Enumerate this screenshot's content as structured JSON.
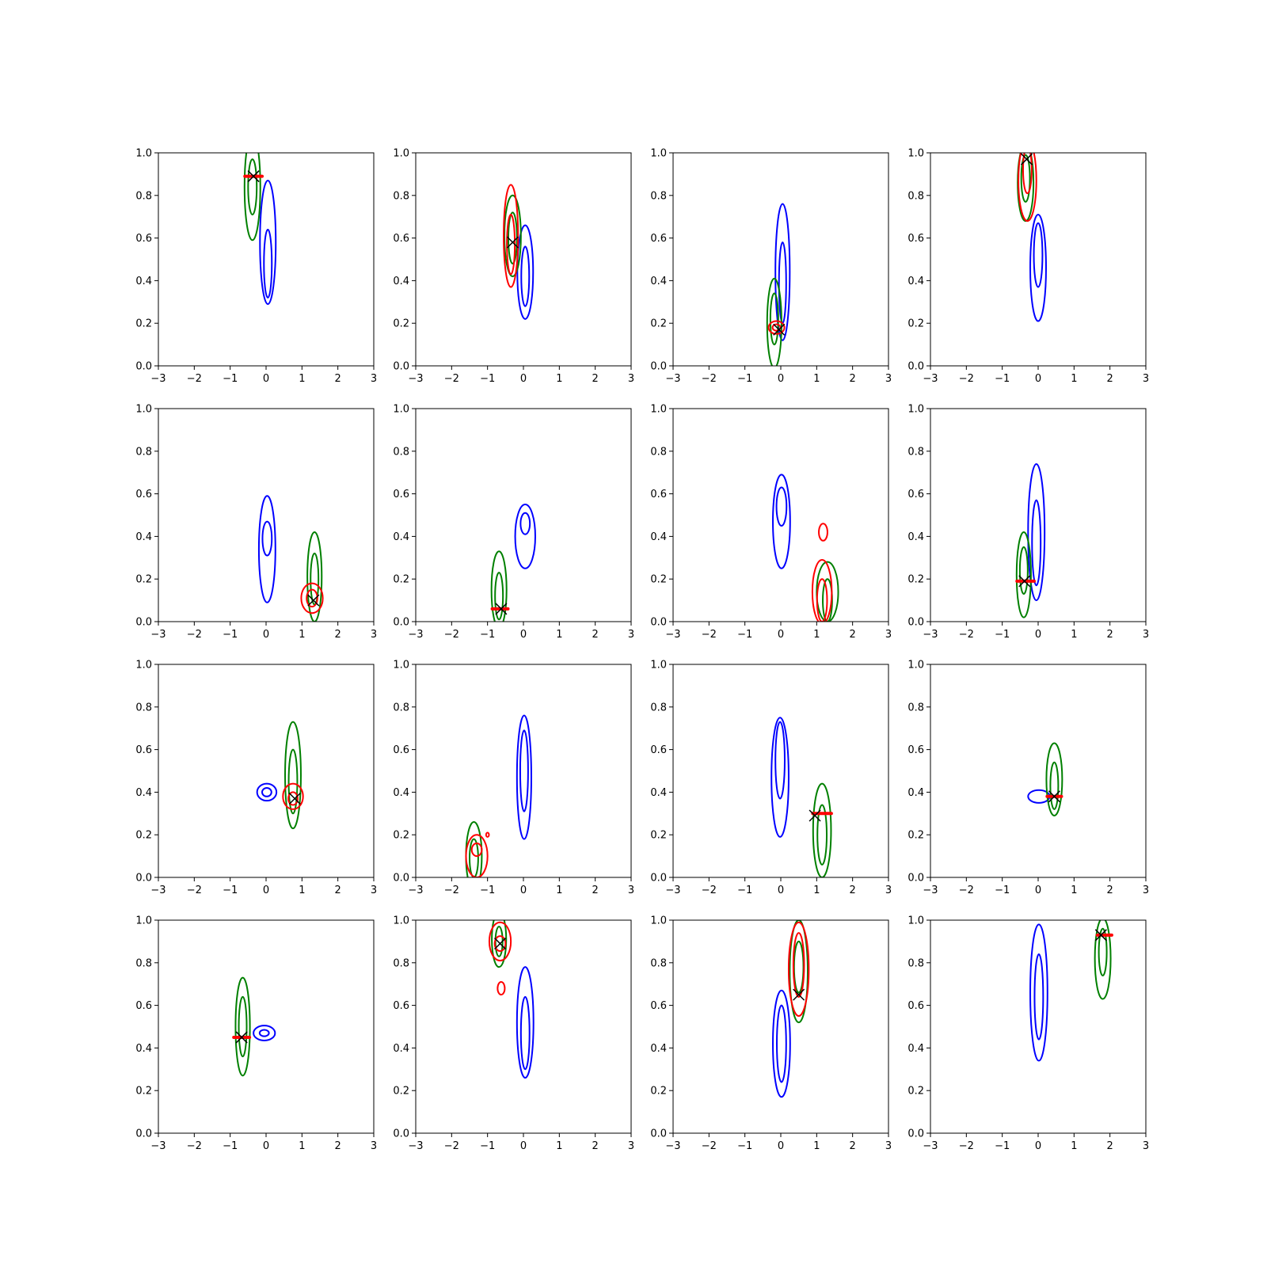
{
  "figure": {
    "description_free": true,
    "colors": {
      "blue": "#0000ff",
      "green": "#008000",
      "red": "#ff0000",
      "marker": "#000000",
      "axes": "#000000",
      "background": "#ffffff"
    }
  },
  "chart_data": [
    {
      "type": "contour",
      "xlim": [
        -3,
        3
      ],
      "ylim": [
        0,
        1
      ],
      "xticks": [
        "−3",
        "−2",
        "−1",
        "0",
        "1",
        "2",
        "3"
      ],
      "yticks": [
        "0.0",
        "0.2",
        "0.4",
        "0.6",
        "0.8",
        "1.0"
      ],
      "marker": [
        -0.35,
        0.89
      ],
      "contours": [
        {
          "color": "blue",
          "cx": 0.05,
          "cy": 0.58,
          "rx": 0.22,
          "ry": 0.29,
          "irx": 0.11,
          "iry": 0.16,
          "icy": 0.48
        },
        {
          "color": "green",
          "cx": -0.38,
          "cy": 0.84,
          "rx": 0.22,
          "ry": 0.25,
          "irx": 0.12,
          "iry": 0.13,
          "icy": 0.84
        },
        {
          "color": "red",
          "kind": "flat",
          "cx": -0.35,
          "cy": 0.89,
          "rx": 0.24,
          "ry": 0.012
        }
      ]
    },
    {
      "type": "contour",
      "xlim": [
        -3,
        3
      ],
      "ylim": [
        0,
        1
      ],
      "xticks": [
        "−3",
        "−2",
        "−1",
        "0",
        "1",
        "2",
        "3"
      ],
      "yticks": [
        "0.0",
        "0.2",
        "0.4",
        "0.6",
        "0.8",
        "1.0"
      ],
      "marker": [
        -0.3,
        0.58
      ],
      "contours": [
        {
          "color": "blue",
          "cx": 0.05,
          "cy": 0.44,
          "rx": 0.22,
          "ry": 0.22,
          "irx": 0.11,
          "iry": 0.14,
          "icy": 0.42
        },
        {
          "color": "green",
          "cx": -0.3,
          "cy": 0.61,
          "rx": 0.23,
          "ry": 0.19,
          "irx": 0.12,
          "iry": 0.12,
          "icy": 0.6
        },
        {
          "color": "red",
          "cx": -0.35,
          "cy": 0.61,
          "rx": 0.2,
          "ry": 0.24,
          "irx": 0.11,
          "iry": 0.14,
          "icy": 0.57
        }
      ]
    },
    {
      "type": "contour",
      "xlim": [
        -3,
        3
      ],
      "ylim": [
        0,
        1
      ],
      "xticks": [
        "−3",
        "−2",
        "−1",
        "0",
        "1",
        "2",
        "3"
      ],
      "yticks": [
        "0.0",
        "0.2",
        "0.4",
        "0.6",
        "0.8",
        "1.0"
      ],
      "marker": [
        -0.05,
        0.17
      ],
      "contours": [
        {
          "color": "blue",
          "cx": 0.05,
          "cy": 0.44,
          "rx": 0.2,
          "ry": 0.32,
          "irx": 0.1,
          "iry": 0.19,
          "icy": 0.39
        },
        {
          "color": "green",
          "cx": -0.18,
          "cy": 0.2,
          "rx": 0.2,
          "ry": 0.21,
          "irx": 0.11,
          "iry": 0.12,
          "icy": 0.22
        },
        {
          "color": "red",
          "cx": -0.12,
          "cy": 0.18,
          "rx": 0.22,
          "ry": 0.03,
          "irx": 0.11,
          "iry": 0.015,
          "icy": 0.18
        }
      ]
    },
    {
      "type": "contour",
      "xlim": [
        -3,
        3
      ],
      "ylim": [
        0,
        1
      ],
      "xticks": [
        "−3",
        "−2",
        "−1",
        "0",
        "1",
        "2",
        "3"
      ],
      "yticks": [
        "0.0",
        "0.2",
        "0.4",
        "0.6",
        "0.8",
        "1.0"
      ],
      "marker": [
        -0.32,
        0.97
      ],
      "contours": [
        {
          "color": "blue",
          "cx": 0.0,
          "cy": 0.46,
          "rx": 0.22,
          "ry": 0.25,
          "irx": 0.12,
          "iry": 0.15,
          "icy": 0.52
        },
        {
          "color": "green",
          "cx": -0.35,
          "cy": 0.86,
          "rx": 0.22,
          "ry": 0.18,
          "irx": 0.12,
          "iry": 0.11,
          "icy": 0.88
        },
        {
          "color": "red",
          "cx": -0.3,
          "cy": 0.87,
          "rx": 0.25,
          "ry": 0.19,
          "irx": 0.12,
          "iry": 0.11,
          "icy": 0.92
        }
      ]
    },
    {
      "type": "contour",
      "xlim": [
        -3,
        3
      ],
      "ylim": [
        0,
        1
      ],
      "xticks": [
        "−3",
        "−2",
        "−1",
        "0",
        "1",
        "2",
        "3"
      ],
      "yticks": [
        "0.0",
        "0.2",
        "0.4",
        "0.6",
        "0.8",
        "1.0"
      ],
      "marker": [
        1.32,
        0.1
      ],
      "contours": [
        {
          "color": "blue",
          "cx": 0.03,
          "cy": 0.34,
          "rx": 0.23,
          "ry": 0.25,
          "irx": 0.13,
          "iry": 0.08,
          "icy": 0.39
        },
        {
          "color": "green",
          "cx": 1.35,
          "cy": 0.21,
          "rx": 0.2,
          "ry": 0.21,
          "irx": 0.11,
          "iry": 0.12,
          "icy": 0.2
        },
        {
          "color": "red",
          "cx": 1.28,
          "cy": 0.11,
          "rx": 0.3,
          "ry": 0.07,
          "irx": 0.15,
          "iry": 0.04,
          "icy": 0.11
        }
      ]
    },
    {
      "type": "contour",
      "xlim": [
        -3,
        3
      ],
      "ylim": [
        0,
        1
      ],
      "xticks": [
        "−3",
        "−2",
        "−1",
        "0",
        "1",
        "2",
        "3"
      ],
      "yticks": [
        "0.0",
        "0.2",
        "0.4",
        "0.6",
        "0.8",
        "1.0"
      ],
      "marker": [
        -0.62,
        0.06
      ],
      "contours": [
        {
          "color": "blue",
          "cx": 0.05,
          "cy": 0.4,
          "rx": 0.28,
          "ry": 0.15,
          "irx": 0.13,
          "iry": 0.05,
          "icy": 0.46
        },
        {
          "color": "green",
          "cx": -0.68,
          "cy": 0.15,
          "rx": 0.21,
          "ry": 0.18,
          "irx": 0.11,
          "iry": 0.11,
          "icy": 0.12
        },
        {
          "color": "red",
          "kind": "flat",
          "cx": -0.65,
          "cy": 0.06,
          "rx": 0.22,
          "ry": 0.012
        }
      ]
    },
    {
      "type": "contour",
      "xlim": [
        -3,
        3
      ],
      "ylim": [
        0,
        1
      ],
      "xticks": [
        "−3",
        "−2",
        "−1",
        "0",
        "1",
        "2",
        "3"
      ],
      "yticks": [
        "0.0",
        "0.2",
        "0.4",
        "0.6",
        "0.8",
        "1.0"
      ],
      "marker": null,
      "contours": [
        {
          "color": "blue",
          "cx": 0.02,
          "cy": 0.47,
          "rx": 0.24,
          "ry": 0.22,
          "irx": 0.14,
          "iry": 0.09,
          "icy": 0.54
        },
        {
          "color": "green",
          "cx": 1.3,
          "cy": 0.14,
          "rx": 0.3,
          "ry": 0.14,
          "irx": 0.13,
          "iry": 0.1,
          "icy": 0.1
        },
        {
          "color": "red",
          "cx": 1.15,
          "cy": 0.14,
          "rx": 0.27,
          "ry": 0.15,
          "irx": 0.14,
          "iry": 0.1,
          "icy": 0.1
        },
        {
          "color": "red",
          "cx": 1.18,
          "cy": 0.42,
          "rx": 0.12,
          "ry": 0.04
        }
      ]
    },
    {
      "type": "contour",
      "xlim": [
        -3,
        3
      ],
      "ylim": [
        0,
        1
      ],
      "xticks": [
        "−3",
        "−2",
        "−1",
        "0",
        "1",
        "2",
        "3"
      ],
      "yticks": [
        "0.0",
        "0.2",
        "0.4",
        "0.6",
        "0.8",
        "1.0"
      ],
      "marker": [
        -0.38,
        0.19
      ],
      "contours": [
        {
          "color": "blue",
          "cx": -0.05,
          "cy": 0.42,
          "rx": 0.23,
          "ry": 0.32,
          "irx": 0.12,
          "iry": 0.2,
          "icy": 0.37
        },
        {
          "color": "green",
          "cx": -0.4,
          "cy": 0.22,
          "rx": 0.2,
          "ry": 0.2,
          "irx": 0.11,
          "iry": 0.11,
          "icy": 0.24
        },
        {
          "color": "red",
          "kind": "flat",
          "cx": -0.35,
          "cy": 0.19,
          "rx": 0.24,
          "ry": 0.012
        }
      ]
    },
    {
      "type": "contour",
      "xlim": [
        -3,
        3
      ],
      "ylim": [
        0,
        1
      ],
      "xticks": [
        "−3",
        "−2",
        "−1",
        "0",
        "1",
        "2",
        "3"
      ],
      "yticks": [
        "0.0",
        "0.2",
        "0.4",
        "0.6",
        "0.8",
        "1.0"
      ],
      "marker": [
        0.8,
        0.37
      ],
      "contours": [
        {
          "color": "blue",
          "cx": 0.02,
          "cy": 0.4,
          "rx": 0.27,
          "ry": 0.04,
          "irx": 0.13,
          "iry": 0.02,
          "icy": 0.4
        },
        {
          "color": "green",
          "cx": 0.75,
          "cy": 0.48,
          "rx": 0.22,
          "ry": 0.25,
          "irx": 0.12,
          "iry": 0.15,
          "icy": 0.45
        },
        {
          "color": "red",
          "cx": 0.75,
          "cy": 0.38,
          "rx": 0.28,
          "ry": 0.06,
          "irx": 0.13,
          "iry": 0.03,
          "icy": 0.37
        }
      ]
    },
    {
      "type": "contour",
      "xlim": [
        -3,
        3
      ],
      "ylim": [
        0,
        1
      ],
      "xticks": [
        "−3",
        "−2",
        "−1",
        "0",
        "1",
        "2",
        "3"
      ],
      "yticks": [
        "0.0",
        "0.2",
        "0.4",
        "0.6",
        "0.8",
        "1.0"
      ],
      "marker": null,
      "contours": [
        {
          "color": "blue",
          "cx": 0.02,
          "cy": 0.47,
          "rx": 0.2,
          "ry": 0.29,
          "irx": 0.11,
          "iry": 0.19,
          "icy": 0.5
        },
        {
          "color": "green",
          "cx": -1.38,
          "cy": 0.1,
          "rx": 0.22,
          "ry": 0.16,
          "irx": 0.12,
          "iry": 0.09,
          "icy": 0.09
        },
        {
          "color": "red",
          "cx": -1.3,
          "cy": 0.1,
          "rx": 0.3,
          "ry": 0.1,
          "irx": 0.14,
          "iry": 0.03,
          "icy": 0.13
        },
        {
          "color": "red",
          "cx": -1.0,
          "cy": 0.2,
          "rx": 0.04,
          "ry": 0.01
        }
      ]
    },
    {
      "type": "contour",
      "xlim": [
        -3,
        3
      ],
      "ylim": [
        0,
        1
      ],
      "xticks": [
        "−3",
        "−2",
        "−1",
        "0",
        "1",
        "2",
        "3"
      ],
      "yticks": [
        "0.0",
        "0.2",
        "0.4",
        "0.6",
        "0.8",
        "1.0"
      ],
      "marker": [
        0.95,
        0.29
      ],
      "contours": [
        {
          "color": "blue",
          "cx": -0.02,
          "cy": 0.47,
          "rx": 0.24,
          "ry": 0.28,
          "irx": 0.13,
          "iry": 0.18,
          "icy": 0.55
        },
        {
          "color": "green",
          "cx": 1.15,
          "cy": 0.22,
          "rx": 0.25,
          "ry": 0.22,
          "irx": 0.13,
          "iry": 0.14,
          "icy": 0.2
        },
        {
          "color": "red",
          "kind": "flat",
          "cx": 1.15,
          "cy": 0.3,
          "rx": 0.26,
          "ry": 0.012
        }
      ]
    },
    {
      "type": "contour",
      "xlim": [
        -3,
        3
      ],
      "ylim": [
        0,
        1
      ],
      "xticks": [
        "−3",
        "−2",
        "−1",
        "0",
        "1",
        "2",
        "3"
      ],
      "yticks": [
        "0.0",
        "0.2",
        "0.4",
        "0.6",
        "0.8",
        "1.0"
      ],
      "marker": [
        0.45,
        0.38
      ],
      "contours": [
        {
          "color": "blue",
          "cx": 0.02,
          "cy": 0.38,
          "rx": 0.3,
          "ry": 0.03
        },
        {
          "color": "green",
          "cx": 0.45,
          "cy": 0.46,
          "rx": 0.22,
          "ry": 0.17,
          "irx": 0.11,
          "iry": 0.11,
          "icy": 0.43
        },
        {
          "color": "red",
          "kind": "flat",
          "cx": 0.45,
          "cy": 0.38,
          "rx": 0.2,
          "ry": 0.012
        }
      ]
    },
    {
      "type": "contour",
      "xlim": [
        -3,
        3
      ],
      "ylim": [
        0,
        1
      ],
      "xticks": [
        "−3",
        "−2",
        "−1",
        "0",
        "1",
        "2",
        "3"
      ],
      "yticks": [
        "0.0",
        "0.2",
        "0.4",
        "0.6",
        "0.8",
        "1.0"
      ],
      "marker": [
        -0.68,
        0.45
      ],
      "contours": [
        {
          "color": "blue",
          "cx": -0.05,
          "cy": 0.47,
          "rx": 0.3,
          "ry": 0.035,
          "irx": 0.13,
          "iry": 0.015,
          "icy": 0.47
        },
        {
          "color": "green",
          "cx": -0.65,
          "cy": 0.5,
          "rx": 0.2,
          "ry": 0.23,
          "irx": 0.11,
          "iry": 0.14,
          "icy": 0.5
        },
        {
          "color": "red",
          "kind": "flat",
          "cx": -0.68,
          "cy": 0.45,
          "rx": 0.22,
          "ry": 0.012
        }
      ]
    },
    {
      "type": "contour",
      "xlim": [
        -3,
        3
      ],
      "ylim": [
        0,
        1
      ],
      "xticks": [
        "−3",
        "−2",
        "−1",
        "0",
        "1",
        "2",
        "3"
      ],
      "yticks": [
        "0.0",
        "0.2",
        "0.4",
        "0.6",
        "0.8",
        "1.0"
      ],
      "marker": [
        -0.65,
        0.89
      ],
      "contours": [
        {
          "color": "blue",
          "cx": 0.05,
          "cy": 0.52,
          "rx": 0.23,
          "ry": 0.26,
          "irx": 0.12,
          "iry": 0.17,
          "icy": 0.47
        },
        {
          "color": "green",
          "cx": -0.68,
          "cy": 0.91,
          "rx": 0.2,
          "ry": 0.13,
          "irx": 0.1,
          "iry": 0.07,
          "icy": 0.9
        },
        {
          "color": "red",
          "cx": -0.65,
          "cy": 0.9,
          "rx": 0.3,
          "ry": 0.09,
          "irx": 0.15,
          "iry": 0.035,
          "icy": 0.89
        },
        {
          "color": "red",
          "cx": -0.62,
          "cy": 0.68,
          "rx": 0.1,
          "ry": 0.03
        }
      ]
    },
    {
      "type": "contour",
      "xlim": [
        -3,
        3
      ],
      "ylim": [
        0,
        1
      ],
      "xticks": [
        "−3",
        "−2",
        "−1",
        "0",
        "1",
        "2",
        "3"
      ],
      "yticks": [
        "0.0",
        "0.2",
        "0.4",
        "0.6",
        "0.8",
        "1.0"
      ],
      "marker": [
        0.5,
        0.65
      ],
      "contours": [
        {
          "color": "blue",
          "cx": 0.02,
          "cy": 0.42,
          "rx": 0.24,
          "ry": 0.25,
          "irx": 0.13,
          "iry": 0.18,
          "icy": 0.42
        },
        {
          "color": "green",
          "cx": 0.5,
          "cy": 0.76,
          "rx": 0.25,
          "ry": 0.24,
          "irx": 0.13,
          "iry": 0.12,
          "icy": 0.78
        },
        {
          "color": "red",
          "cx": 0.5,
          "cy": 0.77,
          "rx": 0.28,
          "ry": 0.22,
          "irx": 0.15,
          "iry": 0.15,
          "icy": 0.79
        }
      ]
    },
    {
      "type": "contour",
      "xlim": [
        -3,
        3
      ],
      "ylim": [
        0,
        1
      ],
      "xticks": [
        "−3",
        "−2",
        "−1",
        "0",
        "1",
        "2",
        "3"
      ],
      "yticks": [
        "0.0",
        "0.2",
        "0.4",
        "0.6",
        "0.8",
        "1.0"
      ],
      "marker": [
        1.75,
        0.93
      ],
      "contours": [
        {
          "color": "blue",
          "cx": 0.02,
          "cy": 0.66,
          "rx": 0.24,
          "ry": 0.32,
          "irx": 0.12,
          "iry": 0.2,
          "icy": 0.64
        },
        {
          "color": "green",
          "cx": 1.8,
          "cy": 0.82,
          "rx": 0.22,
          "ry": 0.19,
          "irx": 0.11,
          "iry": 0.11,
          "icy": 0.85
        },
        {
          "color": "red",
          "kind": "flat",
          "cx": 1.85,
          "cy": 0.93,
          "rx": 0.2,
          "ry": 0.012
        }
      ]
    }
  ]
}
